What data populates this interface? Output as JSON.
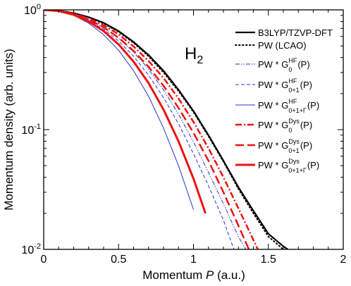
{
  "chart_data": {
    "type": "line",
    "title": "",
    "inset_label": {
      "main": "H",
      "sub": "2"
    },
    "xlabel": {
      "pre": "Momentum ",
      "italic": "P",
      "post": " (a.u.)"
    },
    "ylabel": "Momentum density (arb. units)",
    "x_range": [
      0,
      2
    ],
    "y_range": [
      0.01,
      1
    ],
    "y_scale": "log",
    "grid": false,
    "legend_position": "top-right",
    "x_ticks": [
      {
        "value": 0,
        "label": "0"
      },
      {
        "value": 0.5,
        "label": "0.5"
      },
      {
        "value": 1,
        "label": "1"
      },
      {
        "value": 1.5,
        "label": "1.5"
      },
      {
        "value": 2,
        "label": "2"
      }
    ],
    "y_ticks": [
      {
        "value": 1,
        "base": "10",
        "exp": "0"
      },
      {
        "value": 0.1,
        "base": "10",
        "exp": "-1"
      },
      {
        "value": 0.01,
        "base": "10",
        "exp": "-2"
      }
    ],
    "series": [
      {
        "legend": {
          "text": "B3LYP/TZVP-DFT"
        },
        "color": "#000000",
        "style": "solid",
        "width": 2.2,
        "x": [
          0,
          0.1,
          0.2,
          0.3,
          0.4,
          0.5,
          0.6,
          0.7,
          0.8,
          0.9,
          1.0,
          1.1,
          1.2,
          1.3,
          1.4,
          1.5,
          1.6,
          1.63
        ],
        "y": [
          1.0,
          0.985,
          0.94,
          0.87,
          0.78,
          0.665,
          0.54,
          0.42,
          0.31,
          0.215,
          0.143,
          0.09,
          0.055,
          0.033,
          0.021,
          0.0135,
          0.0106,
          0.01
        ]
      },
      {
        "legend": {
          "text": "PW (LCAO)"
        },
        "color": "#000000",
        "style": "dotted",
        "width": 2,
        "x": [
          0,
          0.1,
          0.2,
          0.3,
          0.4,
          0.5,
          0.6,
          0.7,
          0.8,
          0.9,
          1.0,
          1.1,
          1.2,
          1.3,
          1.4,
          1.5,
          1.6
        ],
        "y": [
          1.0,
          0.985,
          0.94,
          0.865,
          0.77,
          0.655,
          0.53,
          0.41,
          0.3,
          0.21,
          0.14,
          0.088,
          0.054,
          0.032,
          0.02,
          0.0128,
          0.01
        ]
      },
      {
        "legend": {
          "pre": "PW * G",
          "sup": "HF",
          "sub": "0",
          "post": "(P)"
        },
        "color": "#2233cc",
        "style": "dashdotdot",
        "width": 1,
        "x": [
          0,
          0.1,
          0.2,
          0.3,
          0.4,
          0.5,
          0.6,
          0.7,
          0.8,
          0.9,
          1.0,
          1.1,
          1.2,
          1.3,
          1.35
        ],
        "y": [
          1.0,
          0.98,
          0.92,
          0.83,
          0.715,
          0.58,
          0.445,
          0.32,
          0.215,
          0.135,
          0.079,
          0.044,
          0.024,
          0.0128,
          0.01
        ]
      },
      {
        "legend": {
          "pre": "PW * G",
          "sup": "HF",
          "sub": "0+1",
          "post": "(P)"
        },
        "color": "#2233cc",
        "style": "dashed",
        "width": 1,
        "x": [
          0,
          0.1,
          0.2,
          0.3,
          0.4,
          0.5,
          0.6,
          0.7,
          0.8,
          0.9,
          1.0,
          1.1,
          1.2,
          1.27
        ],
        "y": [
          1.0,
          0.98,
          0.915,
          0.815,
          0.69,
          0.55,
          0.41,
          0.285,
          0.185,
          0.112,
          0.063,
          0.034,
          0.0175,
          0.01
        ]
      },
      {
        "legend": {
          "pre": "PW * G",
          "sup": "HF",
          "sub": "0+1+Γ",
          "post": "(P)"
        },
        "color": "#2233cc",
        "style": "solid",
        "width": 1,
        "x": [
          0,
          0.1,
          0.2,
          0.3,
          0.4,
          0.5,
          0.6,
          0.7,
          0.8,
          0.9,
          1.0
        ],
        "y": [
          1.0,
          0.975,
          0.9,
          0.775,
          0.62,
          0.46,
          0.31,
          0.19,
          0.103,
          0.05,
          0.0215
        ]
      },
      {
        "legend": {
          "pre": "PW * G",
          "sup": "Dys",
          "sub": "0",
          "post": "(P)"
        },
        "color": "#ee1111",
        "style": "dashdot",
        "width": 2.5,
        "x": [
          0,
          0.1,
          0.2,
          0.3,
          0.4,
          0.5,
          0.6,
          0.7,
          0.8,
          0.9,
          1.0,
          1.1,
          1.2,
          1.3,
          1.4,
          1.43
        ],
        "y": [
          1.0,
          0.982,
          0.93,
          0.85,
          0.745,
          0.625,
          0.495,
          0.375,
          0.27,
          0.182,
          0.116,
          0.07,
          0.04,
          0.022,
          0.012,
          0.01
        ]
      },
      {
        "legend": {
          "pre": "PW * G",
          "sup": "Dys",
          "sub": "0+1",
          "post": "(P)"
        },
        "color": "#ee1111",
        "style": "longdash",
        "width": 2.5,
        "x": [
          0,
          0.1,
          0.2,
          0.3,
          0.4,
          0.5,
          0.6,
          0.7,
          0.8,
          0.9,
          1.0,
          1.1,
          1.2,
          1.3,
          1.37
        ],
        "y": [
          1.0,
          0.98,
          0.92,
          0.83,
          0.715,
          0.585,
          0.455,
          0.335,
          0.232,
          0.152,
          0.094,
          0.055,
          0.03,
          0.0158,
          0.01
        ]
      },
      {
        "legend": {
          "pre": "PW * G",
          "sup": "Dys",
          "sub": "0+1+Γ",
          "post": "(P)"
        },
        "color": "#ee1111",
        "style": "solid",
        "width": 3,
        "x": [
          0,
          0.1,
          0.2,
          0.3,
          0.4,
          0.5,
          0.6,
          0.7,
          0.8,
          0.9,
          1.0,
          1.08
        ],
        "y": [
          1.0,
          0.978,
          0.91,
          0.8,
          0.665,
          0.515,
          0.37,
          0.245,
          0.147,
          0.08,
          0.039,
          0.02
        ]
      }
    ]
  }
}
